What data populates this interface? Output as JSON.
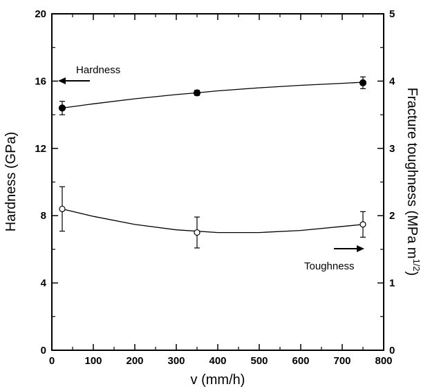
{
  "chart_data": {
    "type": "scatter",
    "xlabel": "v (mm/h)",
    "ylabel_left": "Hardness (GPa)",
    "ylabel_right_main": "Fracture toughness (MPa m",
    "ylabel_right_sup": "1/2",
    "ylabel_right_close": ")",
    "xlim": [
      0,
      800
    ],
    "ylim_left": [
      0,
      20
    ],
    "ylim_right": [
      0,
      5
    ],
    "x_ticks": [
      "0",
      "100",
      "200",
      "300",
      "400",
      "500",
      "600",
      "700",
      "800"
    ],
    "y_ticks_left": [
      "0",
      "4",
      "8",
      "12",
      "16",
      "20"
    ],
    "y_ticks_right": [
      "0",
      "1",
      "2",
      "3",
      "4",
      "5"
    ],
    "grid": false,
    "series": [
      {
        "name": "Hardness",
        "axis": "left",
        "marker": "filled-circle",
        "x": [
          25,
          350,
          750
        ],
        "y": [
          14.4,
          15.3,
          15.9
        ],
        "err": [
          0.4,
          0.15,
          0.35
        ],
        "fit": [
          [
            25,
            14.4
          ],
          [
            100,
            14.65
          ],
          [
            200,
            14.95
          ],
          [
            300,
            15.2
          ],
          [
            350,
            15.3
          ],
          [
            400,
            15.42
          ],
          [
            500,
            15.6
          ],
          [
            600,
            15.75
          ],
          [
            700,
            15.87
          ],
          [
            750,
            15.93
          ]
        ]
      },
      {
        "name": "Toughness",
        "axis": "right",
        "marker": "open-circle",
        "x": [
          25,
          350,
          750
        ],
        "y": [
          2.1,
          1.75,
          1.87
        ],
        "err": [
          0.33,
          0.23,
          0.19
        ],
        "fit": [
          [
            25,
            2.1
          ],
          [
            100,
            1.99
          ],
          [
            200,
            1.87
          ],
          [
            300,
            1.79
          ],
          [
            400,
            1.75
          ],
          [
            500,
            1.75
          ],
          [
            600,
            1.78
          ],
          [
            700,
            1.84
          ],
          [
            750,
            1.87
          ]
        ]
      }
    ],
    "annotations": [
      {
        "text": "Hardness",
        "arrow": "left",
        "series": "Hardness"
      },
      {
        "text": "Toughness",
        "arrow": "right",
        "series": "Toughness"
      }
    ]
  }
}
